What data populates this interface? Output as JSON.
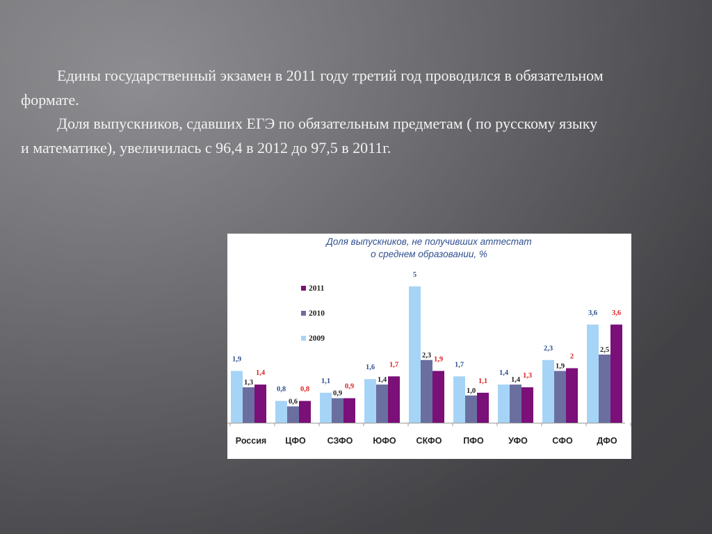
{
  "slide": {
    "paragraph1": "Едины государственный экзамен в 2011 году третий год проводился в обязательном формате.",
    "paragraph2": "Доля выпускников, сдавших ЕГЭ по обязательным предметам ( по русскому языку и математике), увеличилась с 96,4 в 2012 до 97,5 в 2011г."
  },
  "chart_data": {
    "type": "bar",
    "title_line1": "Доля выпускников, не получивших аттестат",
    "title_line2": "о среднем образовании, %",
    "categories": [
      "Россия",
      "ЦФО",
      "СЗФО",
      "ЮФО",
      "СКФО",
      "ПФО",
      "УФО",
      "СФО",
      "ДФО"
    ],
    "series": [
      {
        "name": "2009",
        "color": "#a6d4f6",
        "label_color": "#2f4f8f",
        "values": [
          1.9,
          0.8,
          1.1,
          1.6,
          5,
          1.7,
          1.4,
          2.3,
          3.6
        ],
        "labels": [
          "1,9",
          "0,8",
          "1,1",
          "1,6",
          "5",
          "1,7",
          "1,4",
          "2,3",
          "3,6"
        ]
      },
      {
        "name": "2010",
        "color": "#6a6f9f",
        "label_color": "#222222",
        "values": [
          1.3,
          0.6,
          0.9,
          1.4,
          2.3,
          1.0,
          1.4,
          1.9,
          2.5
        ],
        "labels": [
          "1,3",
          "0,6",
          "0,9",
          "1,4",
          "2,3",
          "1,0",
          "1,4",
          "1,9",
          "2,5"
        ]
      },
      {
        "name": "2011",
        "color": "#7a1078",
        "label_color": "#e02020",
        "values": [
          1.4,
          0.8,
          0.9,
          1.7,
          1.9,
          1.1,
          1.3,
          2,
          3.6
        ],
        "labels": [
          "1,4",
          "0,8",
          "0,9",
          "1,7",
          "1,9",
          "1,1",
          "1,3",
          "2",
          "3,6"
        ]
      }
    ],
    "legend_order": [
      "2011",
      "2010",
      "2009"
    ],
    "legend_position": "left",
    "ylim": [
      0,
      5.2
    ],
    "grid": false
  }
}
